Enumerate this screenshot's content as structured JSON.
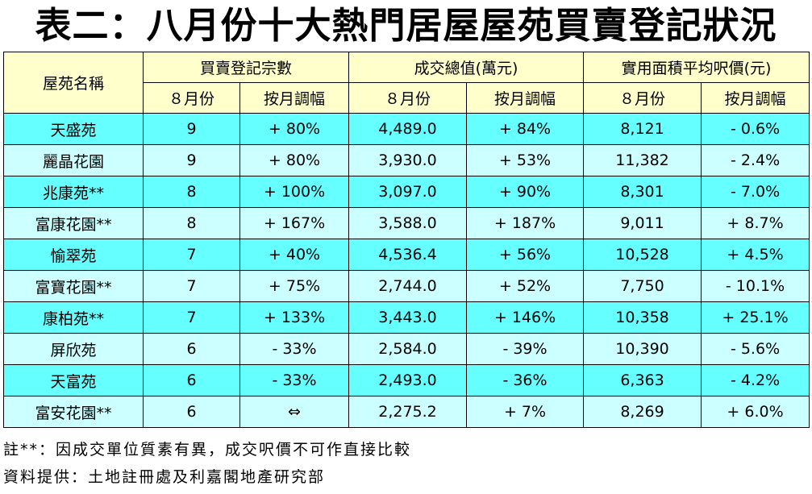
{
  "title": "表二：八月份十大熱門居屋屋苑買賣登記狀況",
  "header": {
    "estate": "屋苑名稱",
    "group_registrations": "買賣登記宗數",
    "group_value": "成交總值(萬元)",
    "group_price": "實用面積平均呎價(元)",
    "sub_august": "８月份",
    "sub_mom": "按月調幅"
  },
  "rows": [
    {
      "name": "天盛苑",
      "reg": "9",
      "reg_chg": "+ 80%",
      "value": "4,489.0",
      "value_chg": "+ 84%",
      "price": "8,121",
      "price_chg": "- 0.6%"
    },
    {
      "name": "麗晶花園",
      "reg": "9",
      "reg_chg": "+ 80%",
      "value": "3,930.0",
      "value_chg": "+ 53%",
      "price": "11,382",
      "price_chg": "- 2.4%"
    },
    {
      "name": "兆康苑**",
      "reg": "8",
      "reg_chg": "+ 100%",
      "value": "3,097.0",
      "value_chg": "+ 90%",
      "price": "8,301",
      "price_chg": "- 7.0%"
    },
    {
      "name": "富康花園**",
      "reg": "8",
      "reg_chg": "+ 167%",
      "value": "3,588.0",
      "value_chg": "+ 187%",
      "price": "9,011",
      "price_chg": "+ 8.7%"
    },
    {
      "name": "愉翠苑",
      "reg": "7",
      "reg_chg": "+ 40%",
      "value": "4,536.4",
      "value_chg": "+ 56%",
      "price": "10,528",
      "price_chg": "+ 4.5%"
    },
    {
      "name": "富寶花園**",
      "reg": "7",
      "reg_chg": "+ 75%",
      "value": "2,744.0",
      "value_chg": "+ 52%",
      "price": "7,750",
      "price_chg": "- 10.1%"
    },
    {
      "name": "康柏苑**",
      "reg": "7",
      "reg_chg": "+ 133%",
      "value": "3,443.0",
      "value_chg": "+ 146%",
      "price": "10,358",
      "price_chg": "+ 25.1%"
    },
    {
      "name": "屏欣苑",
      "reg": "6",
      "reg_chg": "- 33%",
      "value": "2,584.0",
      "value_chg": "- 39%",
      "price": "10,390",
      "price_chg": "- 5.6%"
    },
    {
      "name": "天富苑",
      "reg": "6",
      "reg_chg": "- 33%",
      "value": "2,493.0",
      "value_chg": "- 36%",
      "price": "6,363",
      "price_chg": "- 4.2%"
    },
    {
      "name": "富安花園**",
      "reg": "6",
      "reg_chg": "⇔",
      "value": "2,275.2",
      "value_chg": "+ 7%",
      "price": "8,269",
      "price_chg": "+ 6.0%"
    }
  ],
  "notes": {
    "footnote": "註**：因成交單位質素有異，成交呎價不可作直接比較",
    "source": "資料提供：土地註冊處及利嘉閣地產研究部"
  },
  "colors": {
    "header_bg": "#ffffcc",
    "row_dark": "#66ffff",
    "row_light": "#ccffff"
  }
}
